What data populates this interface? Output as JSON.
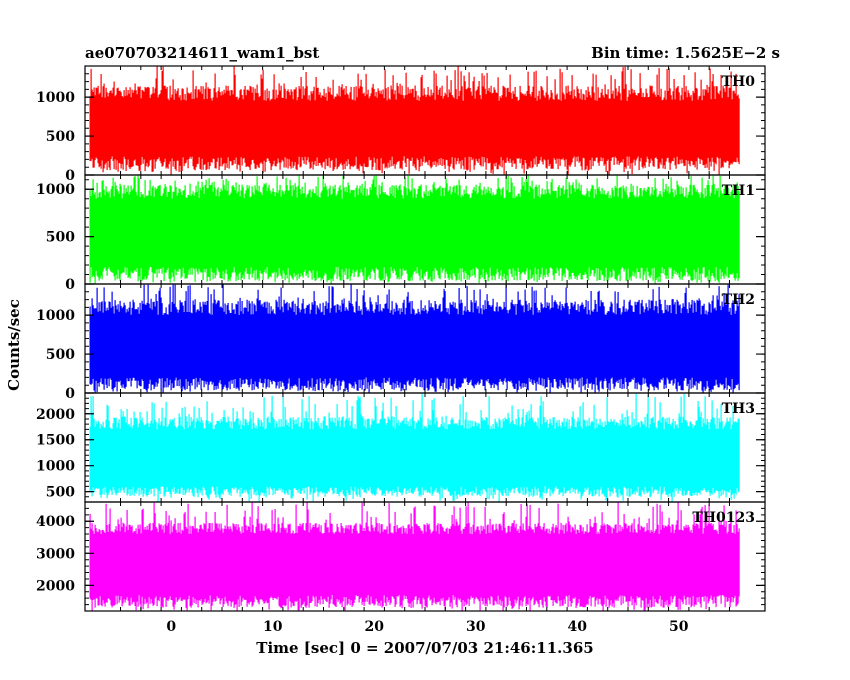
{
  "header": {
    "title": "ae070703214611_wam1_bst",
    "bin_time": "Bin time: 1.5625E−2 s"
  },
  "chart_data": {
    "type": "line",
    "title": "ae070703214611_wam1_bst",
    "subtitle": "Bin time: 1.5625E−2 s",
    "xlabel": "Time [sec] 0 = 2007/07/03 21:46:11.365",
    "ylabel": "Counts/sec",
    "xlim": [
      -8.5,
      58.5
    ],
    "x_ticks": [
      0,
      10,
      20,
      30,
      40,
      50
    ],
    "data_x_range": [
      -8,
      56
    ],
    "grid": false,
    "panels": [
      {
        "name": "TH0",
        "color": "#ff0000",
        "ylim": [
          0,
          1400
        ],
        "y_ticks": [
          0,
          500,
          1000
        ],
        "baseline_min": [
          60,
          240
        ],
        "baseline_max": [
          950,
          1150
        ],
        "spike_max": 1400
      },
      {
        "name": "TH1",
        "color": "#00ff00",
        "ylim": [
          0,
          1150
        ],
        "y_ticks": [
          0,
          500,
          1000
        ],
        "baseline_min": [
          30,
          180
        ],
        "baseline_max": [
          900,
          1050
        ],
        "spike_max": 1150
      },
      {
        "name": "TH2",
        "color": "#0000ff",
        "ylim": [
          0,
          1400
        ],
        "y_ticks": [
          0,
          500,
          1000
        ],
        "baseline_min": [
          30,
          200
        ],
        "baseline_max": [
          1000,
          1200
        ],
        "spike_max": 1400
      },
      {
        "name": "TH3",
        "color": "#00ffff",
        "ylim": [
          300,
          2400
        ],
        "y_ticks": [
          500,
          1000,
          1500,
          2000
        ],
        "baseline_min": [
          400,
          600
        ],
        "baseline_max": [
          1700,
          1950
        ],
        "spike_max": 2400
      },
      {
        "name": "TH0123",
        "color": "#ff00ff",
        "ylim": [
          1200,
          4600
        ],
        "y_ticks": [
          2000,
          3000,
          4000
        ],
        "baseline_min": [
          1300,
          1700
        ],
        "baseline_max": [
          3600,
          3950
        ],
        "spike_max": 4600
      }
    ]
  }
}
